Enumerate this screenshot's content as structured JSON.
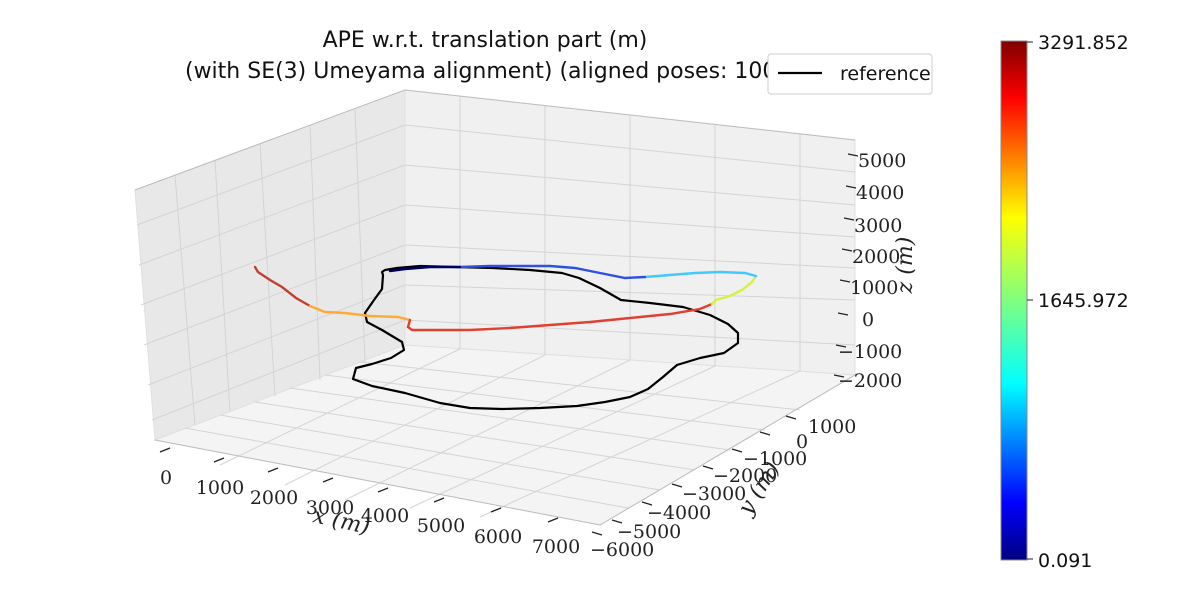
{
  "chart_data": {
    "type": "line",
    "title_lines": [
      "APE w.r.t. translation part (m)",
      "(with SE(3) Umeyama alignment) (aligned poses: 100)"
    ],
    "xlabel": "x (m)",
    "ylabel": "y (m)",
    "zlabel": "z (m)",
    "x_ticks": [
      "0",
      "1000",
      "2000",
      "3000",
      "4000",
      "5000",
      "6000",
      "7000"
    ],
    "y_ticks": [
      "1000",
      "0",
      "−1000",
      "−2000",
      "−3000",
      "−4000",
      "−5000",
      "−6000"
    ],
    "z_ticks": [
      "5000",
      "4000",
      "3000",
      "2000",
      "1000",
      "0",
      "−1000",
      "−2000"
    ],
    "legend": {
      "entries": [
        "reference"
      ],
      "placement": "top-right",
      "color": "#000000"
    },
    "colorbar": {
      "colormap": "jet",
      "min_label": "0.091",
      "mid_label": "1645.972",
      "max_label": "3291.852",
      "stops": [
        "#00007f",
        "#0000ff",
        "#007fff",
        "#00ffff",
        "#7fff7f",
        "#ffff00",
        "#ff7f00",
        "#ff0000",
        "#7f0000"
      ]
    },
    "grid": true,
    "series": [
      {
        "name": "reference",
        "color": "#000000"
      },
      {
        "color": "colormap by APE"
      }
    ]
  }
}
